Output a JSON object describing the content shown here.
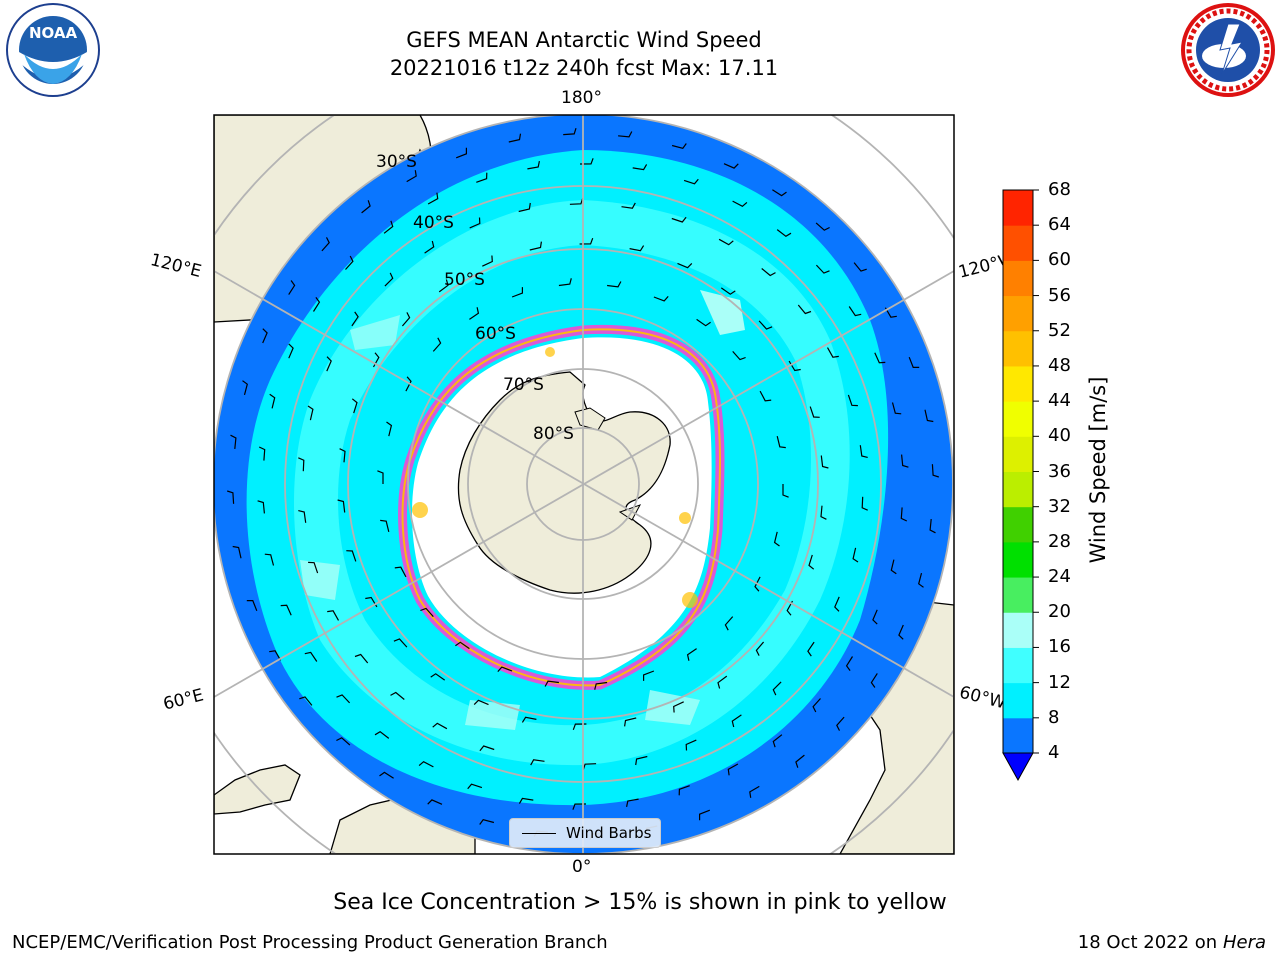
{
  "header": {
    "title_line1": "GEFS MEAN Antarctic Wind Speed",
    "title_line2": "20221016 t12z 240h fcst   Max: 17.11"
  },
  "logos": {
    "left": {
      "icon": "noaa-logo-icon",
      "text": "NOAA"
    },
    "right": {
      "icon": "national-weather-service-logo-icon"
    }
  },
  "map": {
    "projection": "south-polar-stereographic",
    "longitude_labels": {
      "top": "180°",
      "left_upper": "120°E",
      "right_upper": "120°W",
      "left_lower": "60°E",
      "right_lower": "60°W",
      "bottom": "0°"
    },
    "latitude_labels": [
      "30°S",
      "40°S",
      "50°S",
      "60°S",
      "70°S",
      "80°S"
    ],
    "colors": {
      "land": "#efedda",
      "ocean_bg": "#ffffff",
      "grid": "#b4b4b4"
    },
    "legend": {
      "label": "Wind Barbs"
    }
  },
  "colorbar": {
    "title": "Wind Speed [m/s]",
    "levels": [
      "4",
      "8",
      "12",
      "16",
      "20",
      "24",
      "28",
      "32",
      "36",
      "40",
      "44",
      "48",
      "52",
      "56",
      "60",
      "64",
      "68"
    ],
    "colors": [
      "#0a76ff",
      "#00f0ff",
      "#40ffff",
      "#aafff8",
      "#48ee60",
      "#00e000",
      "#40d000",
      "#bbee00",
      "#ddf000",
      "#f0ff00",
      "#ffe800",
      "#ffc000",
      "#ffa000",
      "#ff8000",
      "#ff5000",
      "#ff2400"
    ],
    "under_color": "#0000ff"
  },
  "caption": "Sea Ice Concentration > 15% is shown in pink to yellow",
  "footer": {
    "left": "NCEP/EMC/Verification Post Processing Product Generation Branch",
    "right_prefix": "18 Oct 2022 on ",
    "right_host": "Hera"
  }
}
